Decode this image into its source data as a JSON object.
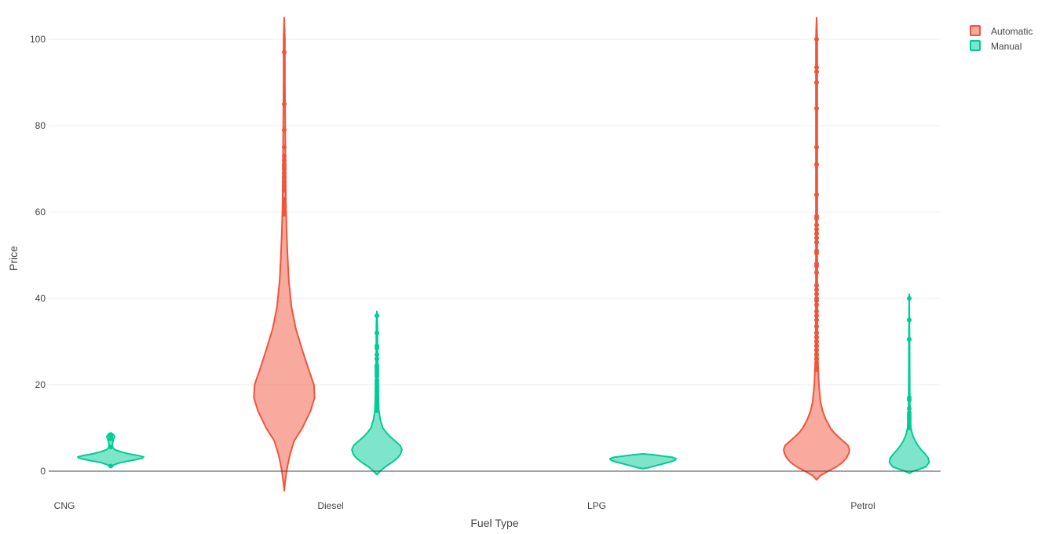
{
  "chart_data": {
    "type": "violin",
    "xlabel": "Fuel Type",
    "ylabel": "Price",
    "categories": [
      "CNG",
      "Diesel",
      "LPG",
      "Petrol"
    ],
    "ylim": [
      -5,
      105
    ],
    "yticks": [
      0,
      20,
      40,
      60,
      80,
      100
    ],
    "grid": true,
    "legend_position": "top-right",
    "series": [
      {
        "name": "Automatic",
        "color": "#EF553B",
        "violins": [
          {
            "category": "Diesel",
            "min": -4.5,
            "max": 105,
            "density": [
              [
                -4.5,
                0.0
              ],
              [
                -3,
                0.02
              ],
              [
                0,
                0.07
              ],
              [
                2,
                0.12
              ],
              [
                4,
                0.18
              ],
              [
                7,
                0.3
              ],
              [
                10,
                0.55
              ],
              [
                14,
                0.8
              ],
              [
                17,
                0.92
              ],
              [
                20,
                0.9
              ],
              [
                24,
                0.72
              ],
              [
                28,
                0.55
              ],
              [
                33,
                0.35
              ],
              [
                38,
                0.22
              ],
              [
                44,
                0.14
              ],
              [
                50,
                0.1
              ],
              [
                56,
                0.07
              ],
              [
                62,
                0.05
              ],
              [
                70,
                0.04
              ],
              [
                80,
                0.03
              ],
              [
                90,
                0.02
              ],
              [
                100,
                0.02
              ],
              [
                105,
                0.0
              ]
            ],
            "outliers": [
              59.5,
              60,
              61,
              62,
              63,
              65,
              66,
              67,
              68,
              69,
              70,
              70.5,
              71,
              72,
              73,
              75,
              79,
              85,
              97
            ]
          },
          {
            "category": "Petrol",
            "min": -2,
            "max": 105,
            "density": [
              [
                -2,
                0.0
              ],
              [
                -1,
                0.12
              ],
              [
                0,
                0.35
              ],
              [
                1,
                0.6
              ],
              [
                2,
                0.78
              ],
              [
                3,
                0.9
              ],
              [
                4,
                0.97
              ],
              [
                5,
                1.0
              ],
              [
                6,
                0.95
              ],
              [
                7,
                0.8
              ],
              [
                8,
                0.65
              ],
              [
                9,
                0.52
              ],
              [
                10,
                0.42
              ],
              [
                12,
                0.28
              ],
              [
                14,
                0.18
              ],
              [
                16,
                0.12
              ],
              [
                20,
                0.07
              ],
              [
                25,
                0.04
              ],
              [
                30,
                0.03
              ],
              [
                40,
                0.02
              ],
              [
                60,
                0.02
              ],
              [
                80,
                0.02
              ],
              [
                100,
                0.02
              ],
              [
                105,
                0.0
              ]
            ],
            "outliers": [
              23.5,
              24,
              25,
              26,
              27,
              28,
              29,
              30,
              31,
              32,
              33.5,
              35,
              36,
              37,
              38.5,
              39.5,
              40,
              41,
              42,
              43,
              46,
              47.5,
              48,
              50.5,
              51,
              53,
              54,
              55,
              56,
              57,
              58.5,
              59,
              64,
              71,
              75,
              84,
              90,
              92.5,
              93.5,
              100
            ]
          }
        ]
      },
      {
        "name": "Manual",
        "color": "#00CC96",
        "violins": [
          {
            "category": "CNG",
            "min": 1,
            "max": 8.8,
            "density": [
              [
                1,
                0.04
              ],
              [
                1.5,
                0.1
              ],
              [
                2,
                0.3
              ],
              [
                2.5,
                0.65
              ],
              [
                3,
                0.95
              ],
              [
                3.3,
                1.0
              ],
              [
                3.6,
                0.85
              ],
              [
                4,
                0.55
              ],
              [
                4.5,
                0.3
              ],
              [
                5,
                0.12
              ],
              [
                5.5,
                0.06
              ],
              [
                6,
                0.05
              ],
              [
                7,
                0.07
              ],
              [
                8,
                0.12
              ],
              [
                8.5,
                0.08
              ],
              [
                8.8,
                0.0
              ]
            ],
            "outliers": [
              1.2,
              5.6,
              7.5,
              8.0,
              8.3,
              8.5
            ]
          },
          {
            "category": "Diesel",
            "min": -0.8,
            "max": 37,
            "density": [
              [
                -0.8,
                0.0
              ],
              [
                0,
                0.1
              ],
              [
                1,
                0.25
              ],
              [
                2,
                0.45
              ],
              [
                3,
                0.62
              ],
              [
                4,
                0.72
              ],
              [
                5,
                0.76
              ],
              [
                6,
                0.7
              ],
              [
                7,
                0.55
              ],
              [
                8,
                0.4
              ],
              [
                9,
                0.28
              ],
              [
                10,
                0.18
              ],
              [
                12,
                0.1
              ],
              [
                14,
                0.06
              ],
              [
                18,
                0.04
              ],
              [
                22,
                0.03
              ],
              [
                28,
                0.02
              ],
              [
                34,
                0.015
              ],
              [
                37,
                0.0
              ]
            ],
            "outliers": [
              14,
              14.5,
              15,
              15.5,
              16,
              16.5,
              17,
              17.5,
              18,
              18.5,
              19,
              19.5,
              20,
              20.5,
              21,
              22,
              22.5,
              23,
              23.5,
              24,
              24.5,
              26,
              27,
              28.5,
              29,
              32,
              36
            ]
          },
          {
            "category": "LPG",
            "min": 0.6,
            "max": 4.0,
            "density": [
              [
                0.6,
                0.0
              ],
              [
                0.8,
                0.15
              ],
              [
                1.2,
                0.35
              ],
              [
                1.7,
                0.6
              ],
              [
                2.2,
                0.85
              ],
              [
                2.6,
                0.98
              ],
              [
                2.9,
                1.0
              ],
              [
                3.2,
                0.9
              ],
              [
                3.5,
                0.6
              ],
              [
                3.8,
                0.3
              ],
              [
                4.0,
                0.0
              ]
            ],
            "outliers": []
          },
          {
            "category": "Petrol",
            "min": -0.5,
            "max": 41,
            "density": [
              [
                -0.5,
                0.0
              ],
              [
                0,
                0.12
              ],
              [
                0.5,
                0.32
              ],
              [
                1,
                0.5
              ],
              [
                2,
                0.6
              ],
              [
                3,
                0.58
              ],
              [
                4,
                0.48
              ],
              [
                5,
                0.36
              ],
              [
                6,
                0.26
              ],
              [
                7,
                0.18
              ],
              [
                8,
                0.12
              ],
              [
                9,
                0.08
              ],
              [
                10,
                0.05
              ],
              [
                12,
                0.03
              ],
              [
                15,
                0.02
              ],
              [
                20,
                0.015
              ],
              [
                30,
                0.01
              ],
              [
                41,
                0.0
              ]
            ],
            "outliers": [
              10,
              10.5,
              11,
              11.5,
              12,
              12.5,
              13,
              13.5,
              14.5,
              16.5,
              17,
              30.5,
              35,
              40
            ]
          }
        ]
      }
    ]
  }
}
